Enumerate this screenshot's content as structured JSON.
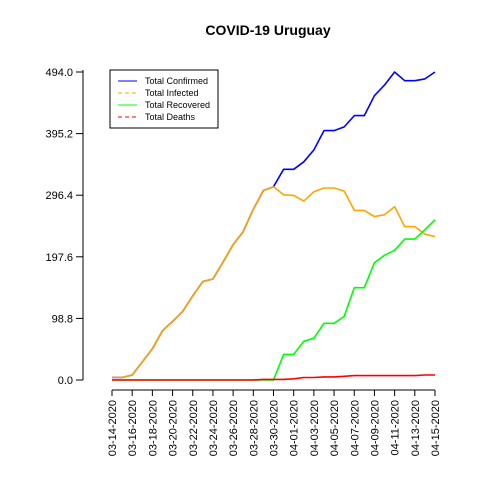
{
  "chart_data": {
    "type": "line",
    "title": "COVID-19 Uruguay",
    "xlabel": "",
    "ylabel": "",
    "ylim": [
      0,
      494
    ],
    "y_ticks": [
      "0.0",
      "98.8",
      "197.6",
      "296.4",
      "395.2",
      "494.0"
    ],
    "x_tick_labels": [
      "03-14-2020",
      "03-16-2020",
      "03-18-2020",
      "03-20-2020",
      "03-22-2020",
      "03-24-2020",
      "03-26-2020",
      "03-28-2020",
      "03-30-2020",
      "04-01-2020",
      "04-03-2020",
      "04-05-2020",
      "04-07-2020",
      "04-09-2020",
      "04-11-2020",
      "04-13-2020",
      "04-15-2020"
    ],
    "x": [
      "03-14-2020",
      "03-15-2020",
      "03-16-2020",
      "03-17-2020",
      "03-18-2020",
      "03-19-2020",
      "03-20-2020",
      "03-21-2020",
      "03-22-2020",
      "03-23-2020",
      "03-24-2020",
      "03-25-2020",
      "03-26-2020",
      "03-27-2020",
      "03-28-2020",
      "03-29-2020",
      "03-30-2020",
      "03-31-2020",
      "04-01-2020",
      "04-02-2020",
      "04-03-2020",
      "04-04-2020",
      "04-05-2020",
      "04-06-2020",
      "04-07-2020",
      "04-08-2020",
      "04-09-2020",
      "04-10-2020",
      "04-11-2020",
      "04-12-2020",
      "04-13-2020",
      "04-14-2020",
      "04-15-2020"
    ],
    "legend_position": "top-left",
    "grid": false,
    "series": [
      {
        "name": "Total Confirmed",
        "color": "#0000ff",
        "dash": "solid",
        "values": [
          4,
          4,
          8,
          29,
          50,
          79,
          94,
          110,
          135,
          158,
          162,
          189,
          217,
          238,
          274,
          304,
          310,
          338,
          338,
          350,
          369,
          400,
          400,
          406,
          424,
          424,
          456,
          473,
          494,
          480,
          480,
          483,
          494
        ]
      },
      {
        "name": "Total Infected",
        "color": "#ffa500",
        "dash": "dashed",
        "values": [
          4,
          4,
          8,
          29,
          50,
          79,
          94,
          110,
          135,
          158,
          162,
          189,
          217,
          238,
          274,
          304,
          310,
          297,
          296,
          287,
          302,
          308,
          308,
          303,
          272,
          272,
          262,
          265,
          278,
          246,
          246,
          234,
          230
        ]
      },
      {
        "name": "Total Recovered",
        "color": "#00ff00",
        "dash": "solid",
        "values": [
          0,
          0,
          0,
          0,
          0,
          0,
          0,
          0,
          0,
          0,
          0,
          0,
          0,
          0,
          0,
          0,
          0,
          41,
          41,
          62,
          67,
          91,
          91,
          102,
          148,
          148,
          188,
          200,
          208,
          226,
          226,
          241,
          257
        ]
      },
      {
        "name": "Total Deaths",
        "color": "#ff0000",
        "dash": "dashed",
        "values": [
          0,
          0,
          0,
          0,
          0,
          0,
          0,
          0,
          0,
          0,
          0,
          0,
          0,
          0,
          0,
          1,
          1,
          1,
          2,
          4,
          4,
          5,
          5,
          6,
          7,
          7,
          7,
          7,
          7,
          7,
          7,
          8,
          8
        ]
      }
    ]
  }
}
